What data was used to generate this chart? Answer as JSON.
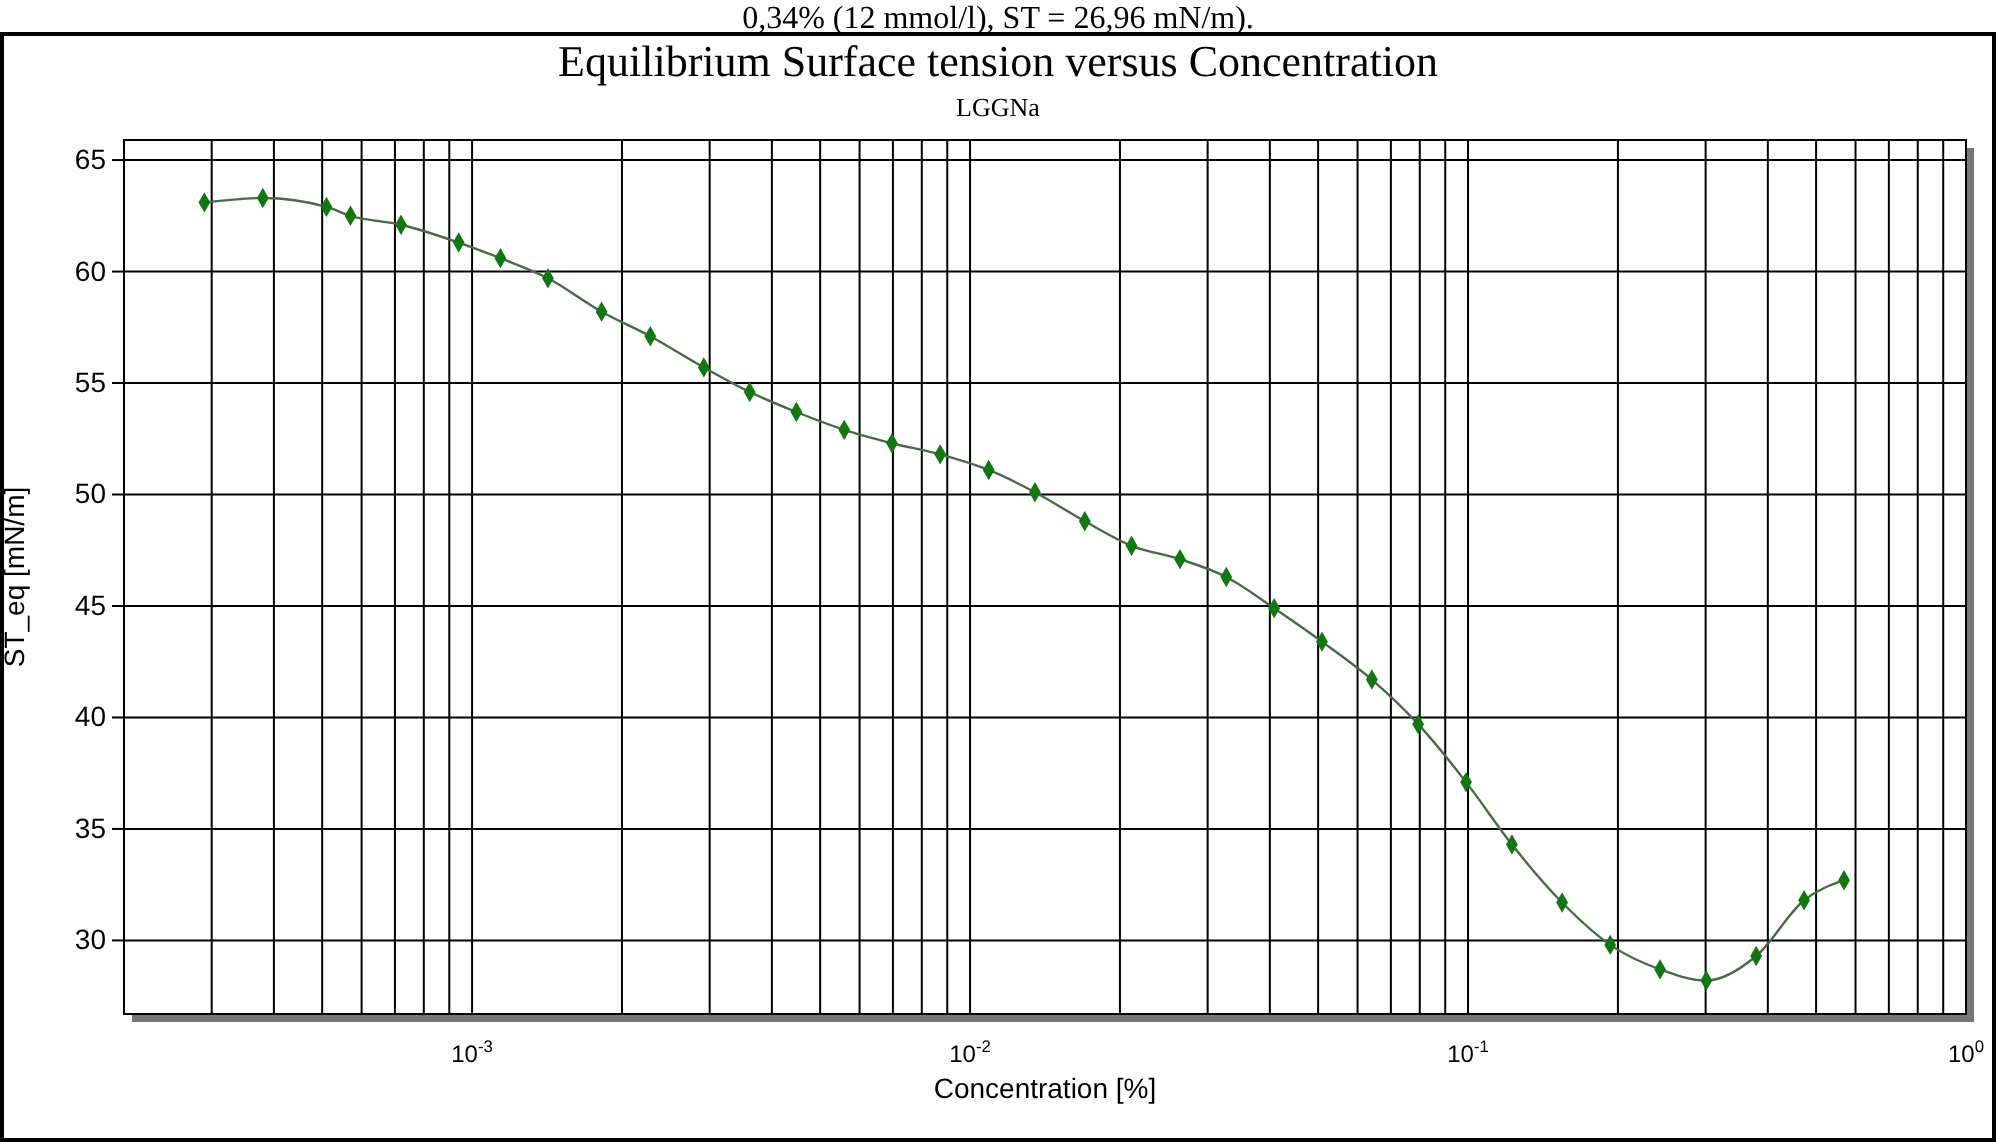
{
  "chart_data": {
    "type": "line",
    "title": "Equilibrium Surface tension versus Concentration",
    "subtitle": "LGGNa",
    "xlabel": "Concentration [%]",
    "ylabel": "ST_eq [mN/m]",
    "annotations": [
      "0,34% (12 mmol/l), ST = 26,96 mN/m)."
    ],
    "log": "x",
    "grid": true,
    "marker": "diamond",
    "line_style": "solid",
    "xlim": [
      0.0002,
      1
    ],
    "ylim": [
      26.7,
      65.9
    ],
    "xticks": [
      {
        "value": 0.0003,
        "label": null
      },
      {
        "value": 0.0004,
        "label": null
      },
      {
        "value": 0.0005,
        "label": null
      },
      {
        "value": 0.0006,
        "label": null
      },
      {
        "value": 0.0007,
        "label": null
      },
      {
        "value": 0.0008,
        "label": null
      },
      {
        "value": 0.0009,
        "label": null
      },
      {
        "value": 0.001,
        "label": "10$^{-3}$"
      },
      {
        "value": 0.002,
        "label": null
      },
      {
        "value": 0.003,
        "label": null
      },
      {
        "value": 0.004,
        "label": null
      },
      {
        "value": 0.005,
        "label": null
      },
      {
        "value": 0.006,
        "label": null
      },
      {
        "value": 0.007,
        "label": null
      },
      {
        "value": 0.008,
        "label": null
      },
      {
        "value": 0.009,
        "label": null
      },
      {
        "value": 0.01,
        "label": "10$^{-2}$"
      },
      {
        "value": 0.02,
        "label": null
      },
      {
        "value": 0.03,
        "label": null
      },
      {
        "value": 0.04,
        "label": null
      },
      {
        "value": 0.05,
        "label": null
      },
      {
        "value": 0.06,
        "label": null
      },
      {
        "value": 0.07,
        "label": null
      },
      {
        "value": 0.08,
        "label": null
      },
      {
        "value": 0.09,
        "label": null
      },
      {
        "value": 0.1,
        "label": "10$^{-1}$"
      },
      {
        "value": 0.2,
        "label": null
      },
      {
        "value": 0.3,
        "label": null
      },
      {
        "value": 0.4,
        "label": null
      },
      {
        "value": 0.5,
        "label": null
      },
      {
        "value": 0.6,
        "label": null
      },
      {
        "value": 0.7,
        "label": null
      },
      {
        "value": 0.8,
        "label": null
      },
      {
        "value": 0.9,
        "label": null
      },
      {
        "value": 1,
        "label": "10$^{0}$"
      }
    ],
    "yticks": [
      30,
      35,
      40,
      45,
      50,
      55,
      60,
      65
    ],
    "x": [
      0.00029,
      0.00038,
      0.00051,
      0.00057,
      0.00072,
      0.00094,
      0.00114,
      0.00142,
      0.00182,
      0.00228,
      0.00292,
      0.00361,
      0.00448,
      0.00559,
      0.00697,
      0.00871,
      0.0109,
      0.0135,
      0.017,
      0.0211,
      0.0264,
      0.0327,
      0.0408,
      0.0509,
      0.0641,
      0.0794,
      0.0991,
      0.1225,
      0.1545,
      0.193,
      0.243,
      0.301,
      0.379,
      0.473,
      0.569
    ],
    "series": [
      {
        "color": "#117711",
        "values": [
          63.1,
          63.3,
          62.9,
          62.5,
          62.1,
          61.3,
          60.6,
          59.7,
          58.2,
          57.1,
          55.7,
          54.6,
          53.7,
          52.9,
          52.3,
          51.8,
          51.1,
          50.1,
          48.8,
          47.7,
          47.1,
          46.3,
          44.9,
          43.4,
          41.7,
          39.7,
          37.1,
          34.3,
          31.7,
          29.8,
          28.7,
          28.2,
          29.3,
          31.8,
          32.7
        ]
      }
    ]
  }
}
